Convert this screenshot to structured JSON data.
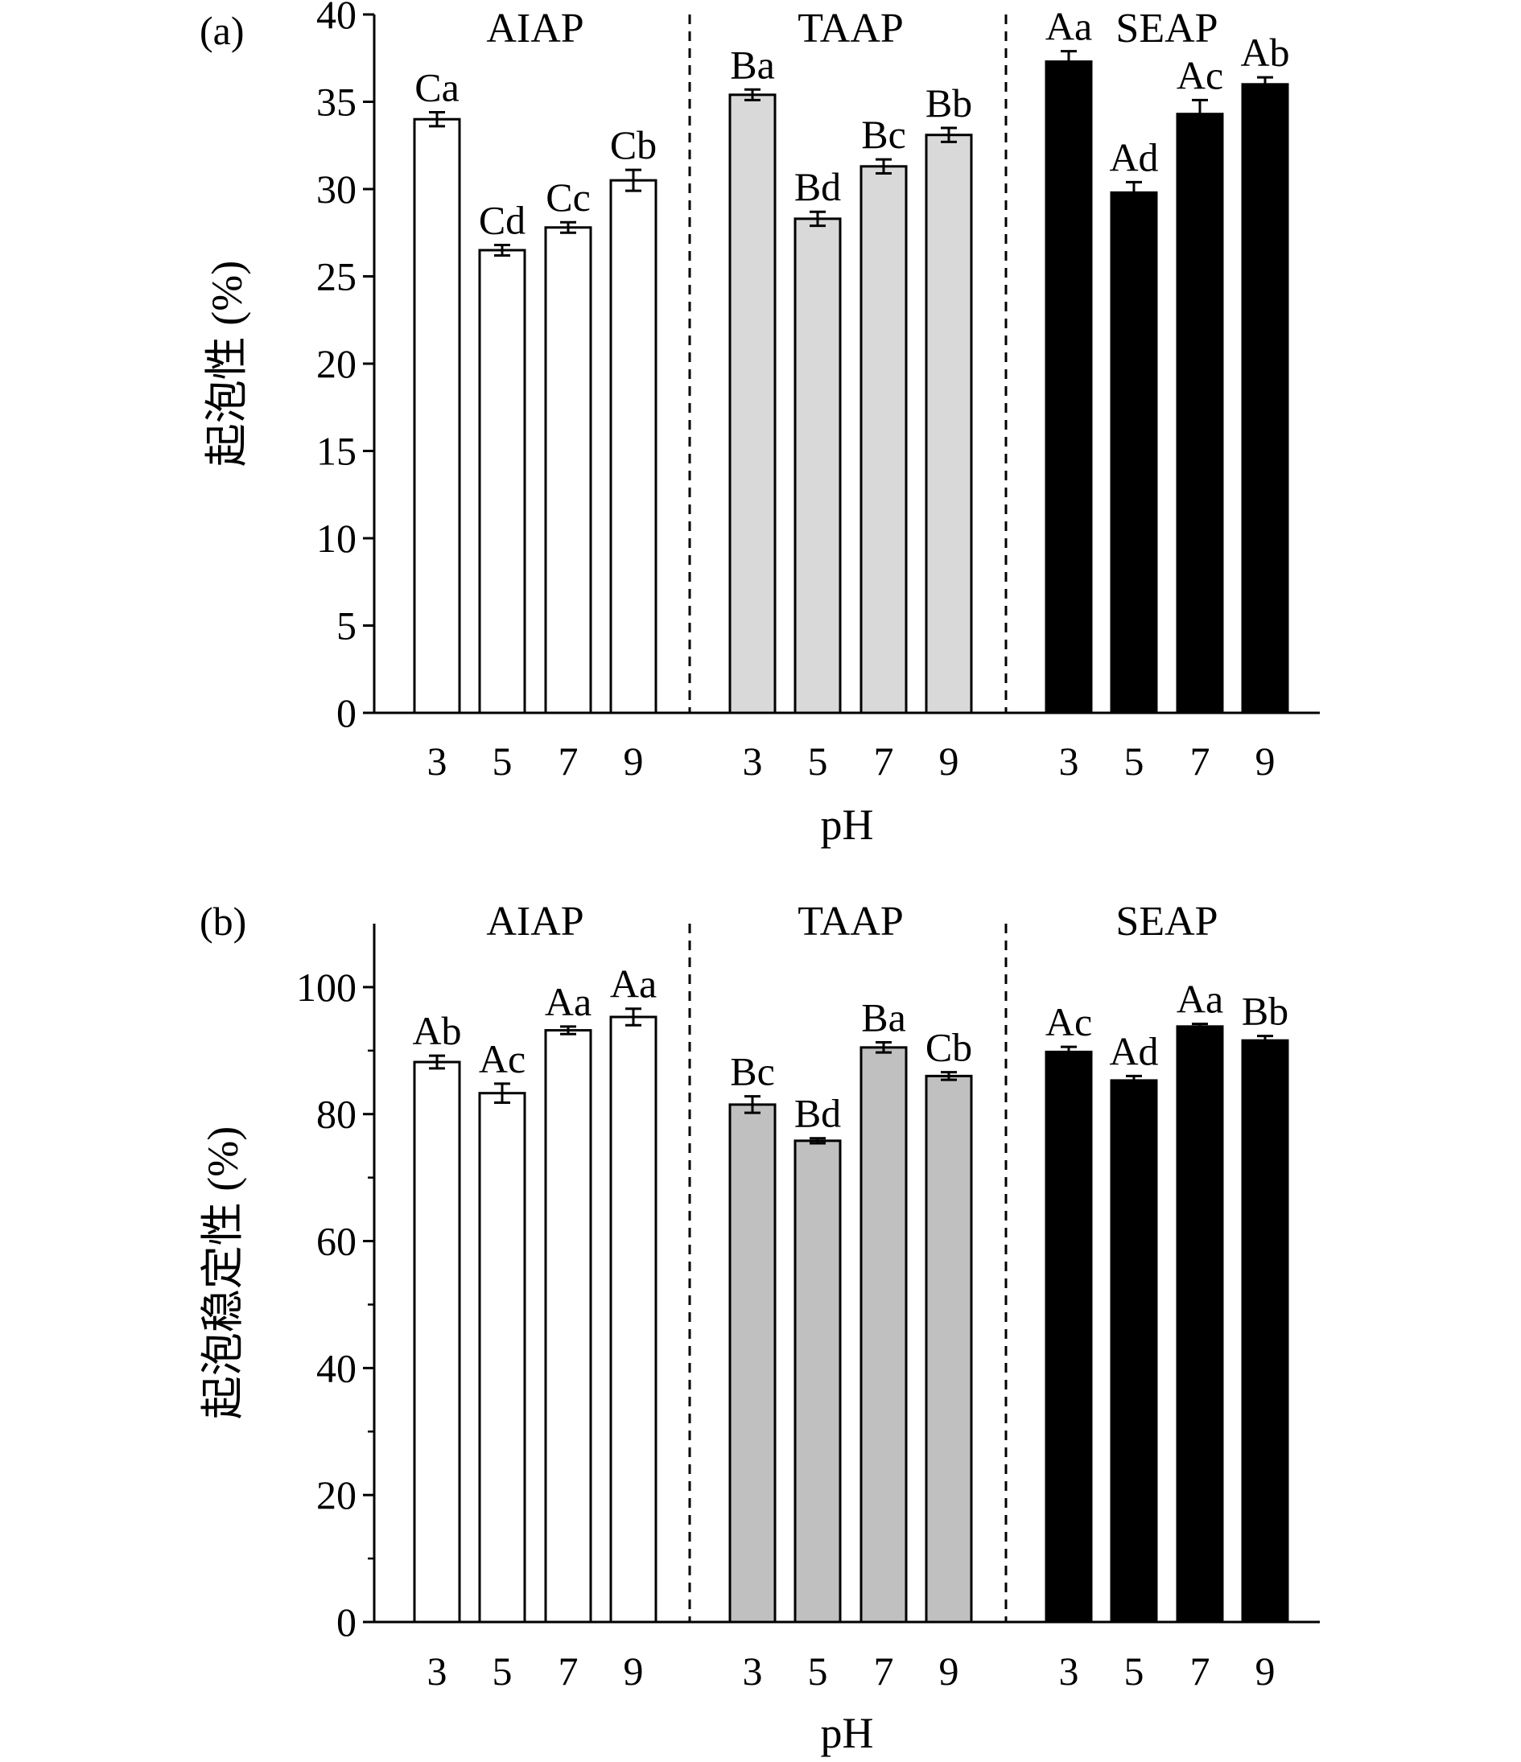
{
  "chart_data": [
    {
      "type": "bar",
      "panel_label": "(a)",
      "title": "",
      "xlabel": "pH",
      "ylabel": "起泡性 (%)",
      "ylim": [
        0,
        40
      ],
      "yticks": [
        0,
        5,
        10,
        15,
        20,
        25,
        30,
        35,
        40
      ],
      "categories": [
        "3",
        "5",
        "7",
        "9"
      ],
      "groups": [
        {
          "name": "AIAP",
          "fill": "#ffffff",
          "values": [
            34.0,
            26.5,
            27.8,
            30.5
          ],
          "errors": [
            0.4,
            0.3,
            0.3,
            0.6
          ],
          "labels": [
            "Ca",
            "Cd",
            "Cc",
            "Cb"
          ]
        },
        {
          "name": "TAAP",
          "fill": "#d9d9d9",
          "values": [
            35.4,
            28.3,
            31.3,
            33.1
          ],
          "errors": [
            0.3,
            0.4,
            0.4,
            0.4
          ],
          "labels": [
            "Ba",
            "Bd",
            "Bc",
            "Bb"
          ]
        },
        {
          "name": "SEAP",
          "fill": "#000000",
          "values": [
            37.3,
            29.8,
            34.3,
            36.0
          ],
          "errors": [
            0.6,
            0.6,
            0.8,
            0.4
          ],
          "labels": [
            "Aa",
            "Ad",
            "Ac",
            "Ab"
          ]
        }
      ]
    },
    {
      "type": "bar",
      "panel_label": "(b)",
      "title": "",
      "xlabel": "pH",
      "ylabel": "起泡稳定性 (%)",
      "ylim": [
        0,
        110
      ],
      "yticks": [
        0,
        20,
        40,
        60,
        80,
        100
      ],
      "categories": [
        "3",
        "5",
        "7",
        "9"
      ],
      "groups": [
        {
          "name": "AIAP",
          "fill": "#ffffff",
          "values": [
            88.2,
            83.3,
            93.2,
            95.3
          ],
          "errors": [
            1.0,
            1.5,
            0.6,
            1.3
          ],
          "labels": [
            "Ab",
            "Ac",
            "Aa",
            "Aa"
          ]
        },
        {
          "name": "TAAP",
          "fill": "#c0c0c0",
          "values": [
            81.5,
            75.8,
            90.5,
            86.0
          ],
          "errors": [
            1.3,
            0.4,
            0.8,
            0.6
          ],
          "labels": [
            "Bc",
            "Bd",
            "Ba",
            "Cb"
          ]
        },
        {
          "name": "SEAP",
          "fill": "#000000",
          "values": [
            89.8,
            85.3,
            93.8,
            91.6
          ],
          "errors": [
            0.8,
            0.7,
            0.4,
            0.7
          ],
          "labels": [
            "Ac",
            "Ad",
            "Aa",
            "Bb"
          ]
        }
      ]
    }
  ]
}
